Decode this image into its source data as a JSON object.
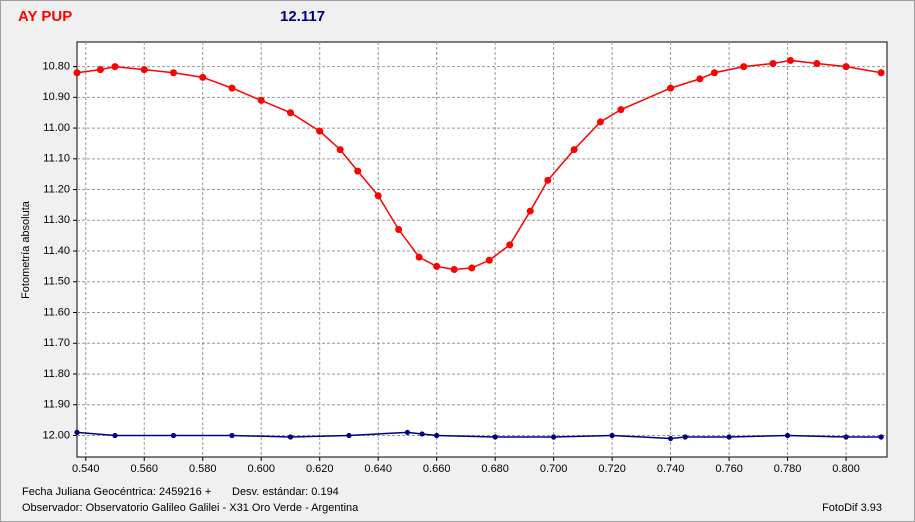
{
  "chart_data": {
    "type": "line",
    "title": "AY PUP",
    "subtitle": "12.117",
    "y_label": "Fotometría absoluta",
    "xlim": [
      0.537,
      0.814
    ],
    "ylim": [
      10.72,
      12.07
    ],
    "y_inverted": true,
    "grid": true,
    "xticks": [
      {
        "value": 0.54,
        "label": "0.540"
      },
      {
        "value": 0.56,
        "label": "0.560"
      },
      {
        "value": 0.58,
        "label": "0.580"
      },
      {
        "value": 0.6,
        "label": "0.600"
      },
      {
        "value": 0.62,
        "label": "0.620"
      },
      {
        "value": 0.64,
        "label": "0.640"
      },
      {
        "value": 0.66,
        "label": "0.660"
      },
      {
        "value": 0.68,
        "label": "0.680"
      },
      {
        "value": 0.7,
        "label": "0.700"
      },
      {
        "value": 0.72,
        "label": "0.720"
      },
      {
        "value": 0.74,
        "label": "0.740"
      },
      {
        "value": 0.76,
        "label": "0.760"
      },
      {
        "value": 0.78,
        "label": "0.780"
      },
      {
        "value": 0.8,
        "label": "0.800"
      }
    ],
    "yticks": [
      {
        "value": 10.8,
        "label": "10.80"
      },
      {
        "value": 10.9,
        "label": "10.90"
      },
      {
        "value": 11.0,
        "label": "11.00"
      },
      {
        "value": 11.1,
        "label": "11.10"
      },
      {
        "value": 11.2,
        "label": "11.20"
      },
      {
        "value": 11.3,
        "label": "11.30"
      },
      {
        "value": 11.4,
        "label": "11.40"
      },
      {
        "value": 11.5,
        "label": "11.50"
      },
      {
        "value": 11.6,
        "label": "11.60"
      },
      {
        "value": 11.7,
        "label": "11.70"
      },
      {
        "value": 11.8,
        "label": "11.80"
      },
      {
        "value": 11.9,
        "label": "11.90"
      },
      {
        "value": 12.0,
        "label": "12.00"
      }
    ],
    "series": [
      {
        "color": "#ff0000",
        "marker_size": 3.5,
        "x": [
          0.537,
          0.545,
          0.55,
          0.56,
          0.57,
          0.58,
          0.59,
          0.6,
          0.61,
          0.62,
          0.627,
          0.633,
          0.64,
          0.647,
          0.654,
          0.66,
          0.666,
          0.672,
          0.678,
          0.685,
          0.692,
          0.698,
          0.707,
          0.716,
          0.723,
          0.74,
          0.75,
          0.755,
          0.765,
          0.775,
          0.781,
          0.79,
          0.8,
          0.812
        ],
        "values": [
          10.82,
          10.81,
          10.8,
          10.81,
          10.82,
          10.835,
          10.87,
          10.91,
          10.95,
          11.01,
          11.07,
          11.14,
          11.22,
          11.33,
          11.42,
          11.45,
          11.46,
          11.455,
          11.43,
          11.38,
          11.27,
          11.17,
          11.07,
          10.98,
          10.94,
          10.87,
          10.84,
          10.82,
          10.8,
          10.79,
          10.78,
          10.79,
          10.8,
          10.82
        ]
      },
      {
        "color": "#000080",
        "marker_size": 2.6,
        "x": [
          0.537,
          0.55,
          0.57,
          0.59,
          0.61,
          0.63,
          0.65,
          0.655,
          0.66,
          0.68,
          0.7,
          0.72,
          0.74,
          0.745,
          0.76,
          0.78,
          0.8,
          0.812
        ],
        "values": [
          11.99,
          12.0,
          12.0,
          12.0,
          12.005,
          12.0,
          11.99,
          11.995,
          12.0,
          12.005,
          12.005,
          12.0,
          12.01,
          12.005,
          12.005,
          12.0,
          12.005,
          12.005
        ]
      }
    ]
  },
  "footer": {
    "date": "Fecha Juliana Geocéntrica: 2459216 +",
    "std": "Desv. estándar: 0.194",
    "observer": "Observador: Observatorio Galileo Galilei - X31 Oro Verde - Argentina",
    "version": "FotoDif 3.93"
  }
}
